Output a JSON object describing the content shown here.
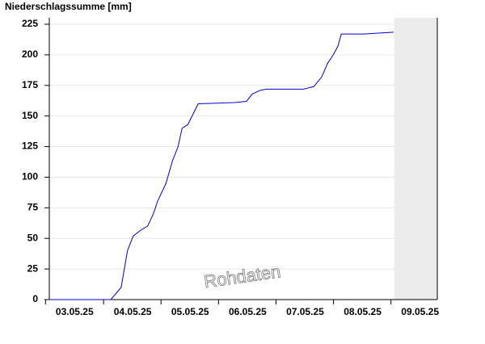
{
  "chart_data": {
    "type": "line",
    "title": "Niederschlagssumme [mm]",
    "watermark": "Rohdaten",
    "x": [
      0,
      1.07,
      1.25,
      1.36,
      1.46,
      1.6,
      1.71,
      1.81,
      1.88,
      2.03,
      2.14,
      2.24,
      2.31,
      2.41,
      2.59,
      3.22,
      3.43,
      3.53,
      3.67,
      3.78,
      4.42,
      4.6,
      4.74,
      4.84,
      4.94,
      5.02,
      5.08,
      5.47,
      5.99
    ],
    "series": [
      {
        "color": "#0000cc",
        "values": [
          0,
          0,
          10,
          40,
          52,
          57,
          60,
          70,
          80,
          95,
          113,
          125,
          140,
          143,
          160,
          161,
          162,
          168,
          171,
          172,
          172,
          174,
          182,
          193,
          200,
          207,
          217,
          217,
          218.5
        ]
      }
    ],
    "xlim": [
      0,
      6.75
    ],
    "xticks": [
      {
        "value": 0.44,
        "label": "03.05.25"
      },
      {
        "value": 1.45,
        "label": "04.05.25"
      },
      {
        "value": 2.45,
        "label": "05.05.25"
      },
      {
        "value": 3.45,
        "label": "06.05.25"
      },
      {
        "value": 4.45,
        "label": "07.05.25"
      },
      {
        "value": 5.45,
        "label": "08.05.25"
      },
      {
        "value": 6.45,
        "label": "09.05.25"
      }
    ],
    "ylim": [
      0,
      225
    ],
    "yticks": [
      0,
      25,
      50,
      75,
      100,
      125,
      150,
      175,
      200,
      225
    ],
    "grid": true,
    "shaded_from": 6.0,
    "shade_color": "#ebebeb"
  }
}
